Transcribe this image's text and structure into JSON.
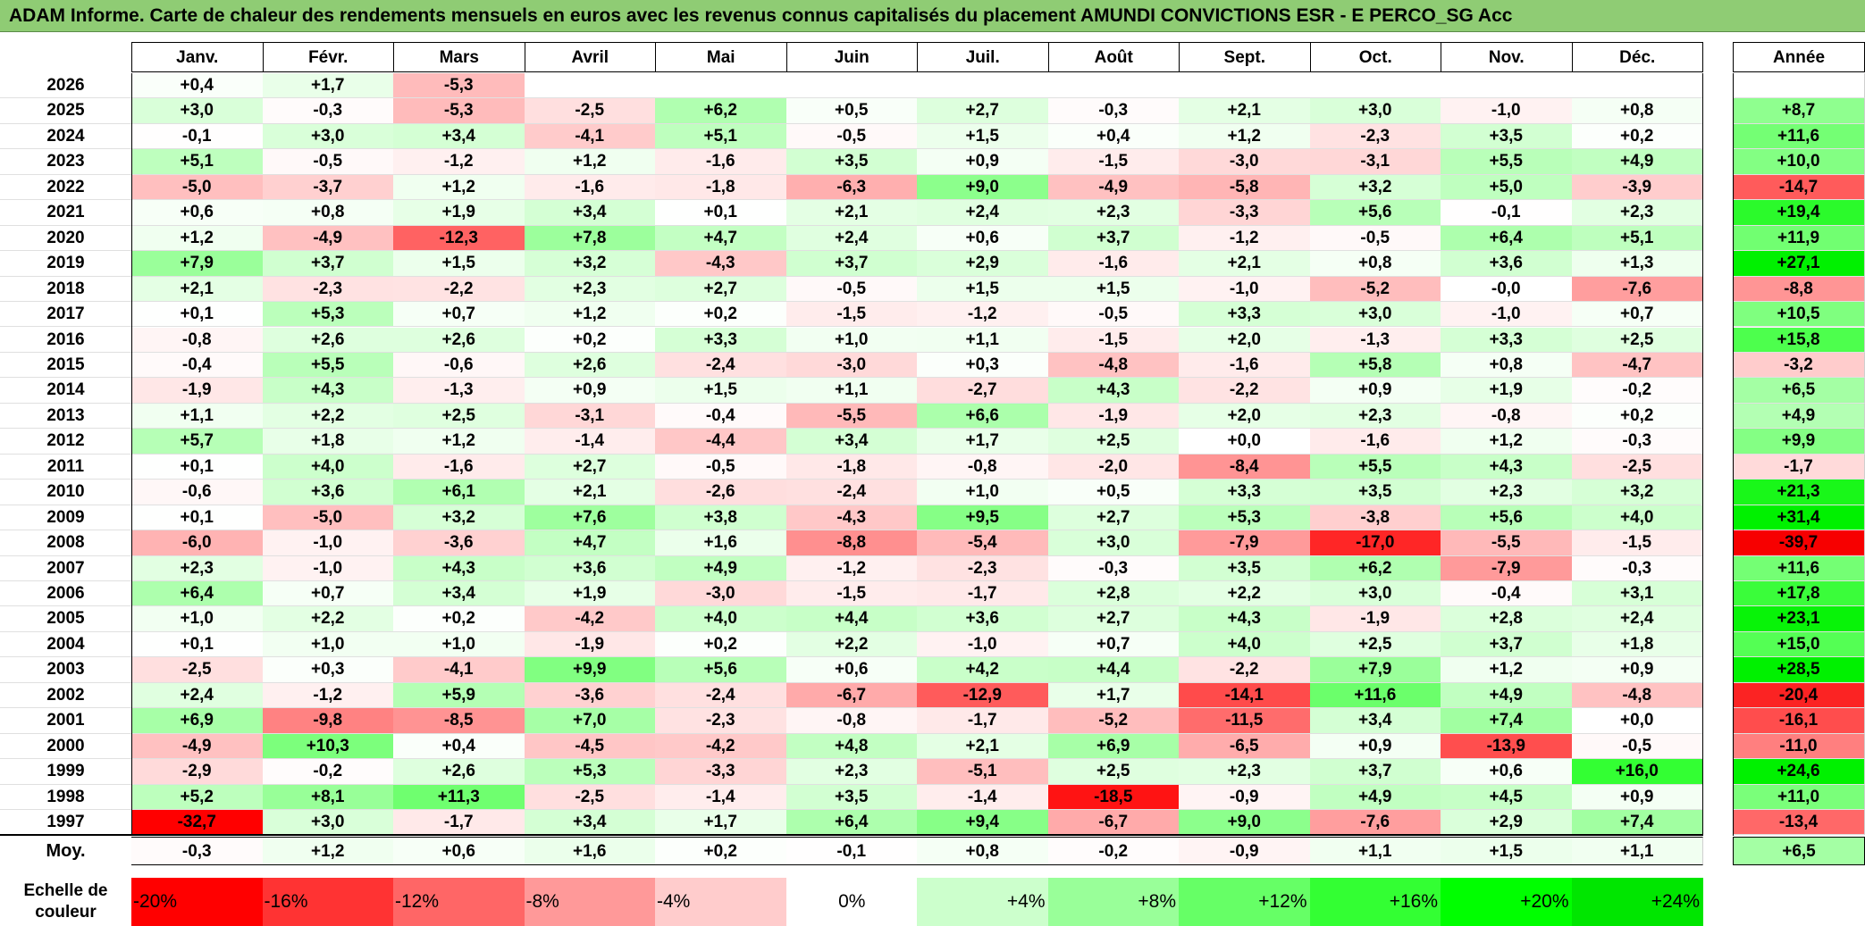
{
  "title": "ADAM Informe. Carte de chaleur des rendements mensuels en euros avec les revenus connus capitalisés du placement AMUNDI CONVICTIONS ESR - E PERCO_SG Acc",
  "chart_data": {
    "type": "heatmap",
    "months": [
      "Janv.",
      "Févr.",
      "Mars",
      "Avril",
      "Mai",
      "Juin",
      "Juil.",
      "Août",
      "Sept.",
      "Oct.",
      "Nov.",
      "Déc."
    ],
    "year_column_label": "Année",
    "rows": [
      {
        "year": "2026",
        "values": [
          "+0,4",
          "+1,7",
          "-5,3",
          null,
          null,
          null,
          null,
          null,
          null,
          null,
          null,
          null
        ],
        "annual": null
      },
      {
        "year": "2025",
        "values": [
          "+3,0",
          "-0,3",
          "-5,3",
          "-2,5",
          "+6,2",
          "+0,5",
          "+2,7",
          "-0,3",
          "+2,1",
          "+3,0",
          "-1,0",
          "+0,8"
        ],
        "annual": "+8,7"
      },
      {
        "year": "2024",
        "values": [
          "-0,1",
          "+3,0",
          "+3,4",
          "-4,1",
          "+5,1",
          "-0,5",
          "+1,5",
          "+0,4",
          "+1,2",
          "-2,3",
          "+3,5",
          "+0,2"
        ],
        "annual": "+11,6"
      },
      {
        "year": "2023",
        "values": [
          "+5,1",
          "-0,5",
          "-1,2",
          "+1,2",
          "-1,6",
          "+3,5",
          "+0,9",
          "-1,5",
          "-3,0",
          "-3,1",
          "+5,5",
          "+4,9"
        ],
        "annual": "+10,0"
      },
      {
        "year": "2022",
        "values": [
          "-5,0",
          "-3,7",
          "+1,2",
          "-1,6",
          "-1,8",
          "-6,3",
          "+9,0",
          "-4,9",
          "-5,8",
          "+3,2",
          "+5,0",
          "-3,9"
        ],
        "annual": "-14,7"
      },
      {
        "year": "2021",
        "values": [
          "+0,6",
          "+0,8",
          "+1,9",
          "+3,4",
          "+0,1",
          "+2,1",
          "+2,4",
          "+2,3",
          "-3,3",
          "+5,6",
          "-0,1",
          "+2,3"
        ],
        "annual": "+19,4"
      },
      {
        "year": "2020",
        "values": [
          "+1,2",
          "-4,9",
          "-12,3",
          "+7,8",
          "+4,7",
          "+2,4",
          "+0,6",
          "+3,7",
          "-1,2",
          "-0,5",
          "+6,4",
          "+5,1"
        ],
        "annual": "+11,9"
      },
      {
        "year": "2019",
        "values": [
          "+7,9",
          "+3,7",
          "+1,5",
          "+3,2",
          "-4,3",
          "+3,7",
          "+2,9",
          "-1,6",
          "+2,1",
          "+0,8",
          "+3,6",
          "+1,3"
        ],
        "annual": "+27,1"
      },
      {
        "year": "2018",
        "values": [
          "+2,1",
          "-2,3",
          "-2,2",
          "+2,3",
          "+2,7",
          "-0,5",
          "+1,5",
          "+1,5",
          "-1,0",
          "-5,2",
          "-0,0",
          "-7,6"
        ],
        "annual": "-8,8"
      },
      {
        "year": "2017",
        "values": [
          "+0,1",
          "+5,3",
          "+0,7",
          "+1,2",
          "+0,2",
          "-1,5",
          "-1,2",
          "-0,5",
          "+3,3",
          "+3,0",
          "-1,0",
          "+0,7"
        ],
        "annual": "+10,5"
      },
      {
        "year": "2016",
        "values": [
          "-0,8",
          "+2,6",
          "+2,6",
          "+0,2",
          "+3,3",
          "+1,0",
          "+1,1",
          "-1,5",
          "+2,0",
          "-1,3",
          "+3,3",
          "+2,5"
        ],
        "annual": "+15,8"
      },
      {
        "year": "2015",
        "values": [
          "-0,4",
          "+5,5",
          "-0,6",
          "+2,6",
          "-2,4",
          "-3,0",
          "+0,3",
          "-4,8",
          "-1,6",
          "+5,8",
          "+0,8",
          "-4,7"
        ],
        "annual": "-3,2"
      },
      {
        "year": "2014",
        "values": [
          "-1,9",
          "+4,3",
          "-1,3",
          "+0,9",
          "+1,5",
          "+1,1",
          "-2,7",
          "+4,3",
          "-2,2",
          "+0,9",
          "+1,9",
          "-0,2"
        ],
        "annual": "+6,5"
      },
      {
        "year": "2013",
        "values": [
          "+1,1",
          "+2,2",
          "+2,5",
          "-3,1",
          "-0,4",
          "-5,5",
          "+6,6",
          "-1,9",
          "+2,0",
          "+2,3",
          "-0,8",
          "+0,2"
        ],
        "annual": "+4,9"
      },
      {
        "year": "2012",
        "values": [
          "+5,7",
          "+1,8",
          "+1,2",
          "-1,4",
          "-4,4",
          "+3,4",
          "+1,7",
          "+2,5",
          "+0,0",
          "-1,6",
          "+1,2",
          "-0,3"
        ],
        "annual": "+9,9"
      },
      {
        "year": "2011",
        "values": [
          "+0,1",
          "+4,0",
          "-1,6",
          "+2,7",
          "-0,5",
          "-1,8",
          "-0,8",
          "-2,0",
          "-8,4",
          "+5,5",
          "+4,3",
          "-2,5"
        ],
        "annual": "-1,7"
      },
      {
        "year": "2010",
        "values": [
          "-0,6",
          "+3,6",
          "+6,1",
          "+2,1",
          "-2,6",
          "-2,4",
          "+1,0",
          "+0,5",
          "+3,3",
          "+3,5",
          "+2,3",
          "+3,2"
        ],
        "annual": "+21,3"
      },
      {
        "year": "2009",
        "values": [
          "+0,1",
          "-5,0",
          "+3,2",
          "+7,6",
          "+3,8",
          "-4,3",
          "+9,5",
          "+2,7",
          "+5,3",
          "-3,8",
          "+5,6",
          "+4,0"
        ],
        "annual": "+31,4"
      },
      {
        "year": "2008",
        "values": [
          "-6,0",
          "-1,0",
          "-3,6",
          "+4,7",
          "+1,6",
          "-8,8",
          "-5,4",
          "+3,0",
          "-7,9",
          "-17,0",
          "-5,5",
          "-1,5"
        ],
        "annual": "-39,7"
      },
      {
        "year": "2007",
        "values": [
          "+2,3",
          "-1,0",
          "+4,3",
          "+3,6",
          "+4,9",
          "-1,2",
          "-2,3",
          "-0,3",
          "+3,5",
          "+6,2",
          "-7,9",
          "-0,3"
        ],
        "annual": "+11,6"
      },
      {
        "year": "2006",
        "values": [
          "+6,4",
          "+0,7",
          "+3,4",
          "+1,9",
          "-3,0",
          "-1,5",
          "-1,7",
          "+2,8",
          "+2,2",
          "+3,0",
          "-0,4",
          "+3,1"
        ],
        "annual": "+17,8"
      },
      {
        "year": "2005",
        "values": [
          "+1,0",
          "+2,2",
          "+0,2",
          "-4,2",
          "+4,0",
          "+4,4",
          "+3,6",
          "+2,7",
          "+4,3",
          "-1,9",
          "+2,8",
          "+2,4"
        ],
        "annual": "+23,1"
      },
      {
        "year": "2004",
        "values": [
          "+0,1",
          "+1,0",
          "+1,0",
          "-1,9",
          "+0,2",
          "+2,2",
          "-1,0",
          "+0,7",
          "+4,0",
          "+2,5",
          "+3,7",
          "+1,8"
        ],
        "annual": "+15,0"
      },
      {
        "year": "2003",
        "values": [
          "-2,5",
          "+0,3",
          "-4,1",
          "+9,9",
          "+5,6",
          "+0,6",
          "+4,2",
          "+4,4",
          "-2,2",
          "+7,9",
          "+1,2",
          "+0,9"
        ],
        "annual": "+28,5"
      },
      {
        "year": "2002",
        "values": [
          "+2,4",
          "-1,2",
          "+5,9",
          "-3,6",
          "-2,4",
          "-6,7",
          "-12,9",
          "+1,7",
          "-14,1",
          "+11,6",
          "+4,9",
          "-4,8"
        ],
        "annual": "-20,4"
      },
      {
        "year": "2001",
        "values": [
          "+6,9",
          "-9,8",
          "-8,5",
          "+7,0",
          "-2,3",
          "-0,8",
          "-1,7",
          "-5,2",
          "-11,5",
          "+3,4",
          "+7,4",
          "+0,0"
        ],
        "annual": "-16,1"
      },
      {
        "year": "2000",
        "values": [
          "-4,9",
          "+10,3",
          "+0,4",
          "-4,5",
          "-4,2",
          "+4,8",
          "+2,1",
          "+6,9",
          "-6,5",
          "+0,9",
          "-13,9",
          "-0,5"
        ],
        "annual": "-11,0"
      },
      {
        "year": "1999",
        "values": [
          "-2,9",
          "-0,2",
          "+2,6",
          "+5,3",
          "-3,3",
          "+2,3",
          "-5,1",
          "+2,5",
          "+2,3",
          "+3,7",
          "+0,6",
          "+16,0"
        ],
        "annual": "+24,6"
      },
      {
        "year": "1998",
        "values": [
          "+5,2",
          "+8,1",
          "+11,3",
          "-2,5",
          "-1,4",
          "+3,5",
          "-1,4",
          "-18,5",
          "-0,9",
          "+4,9",
          "+4,5",
          "+0,9"
        ],
        "annual": "+11,0"
      },
      {
        "year": "1997",
        "values": [
          "-32,7",
          "+3,0",
          "-1,7",
          "+3,4",
          "+1,7",
          "+6,4",
          "+9,4",
          "-6,7",
          "+9,0",
          "-7,6",
          "+2,9",
          "+7,4"
        ],
        "annual": "-13,4"
      }
    ],
    "average": {
      "label": "Moy.",
      "values": [
        "-0,3",
        "+1,2",
        "+0,6",
        "+1,6",
        "+0,2",
        "-0,1",
        "+0,8",
        "-0,2",
        "-0,9",
        "+1,1",
        "+1,5",
        "+1,1"
      ],
      "annual": "+6,5"
    },
    "color_scale": {
      "label_line1": "Echelle de",
      "label_line2": "couleur",
      "stops": [
        {
          "label": "-20%",
          "value": -20,
          "color": "#ff0000"
        },
        {
          "label": "-16%",
          "value": -16,
          "color": "#ff3333"
        },
        {
          "label": "-12%",
          "value": -12,
          "color": "#ff6666"
        },
        {
          "label": "-8%",
          "value": -8,
          "color": "#ff9999"
        },
        {
          "label": "-4%",
          "value": -4,
          "color": "#ffcccc"
        },
        {
          "label": "0%",
          "value": 0,
          "color": "#ffffff"
        },
        {
          "label": "+4%",
          "value": 4,
          "color": "#ccffcc"
        },
        {
          "label": "+8%",
          "value": 8,
          "color": "#99ff99"
        },
        {
          "label": "+12%",
          "value": 12,
          "color": "#66ff66"
        },
        {
          "label": "+16%",
          "value": 16,
          "color": "#33ff33"
        },
        {
          "label": "+20%",
          "value": 20,
          "color": "#00ff00"
        },
        {
          "label": "+24%",
          "value": 24,
          "color": "#00e600"
        }
      ]
    }
  }
}
